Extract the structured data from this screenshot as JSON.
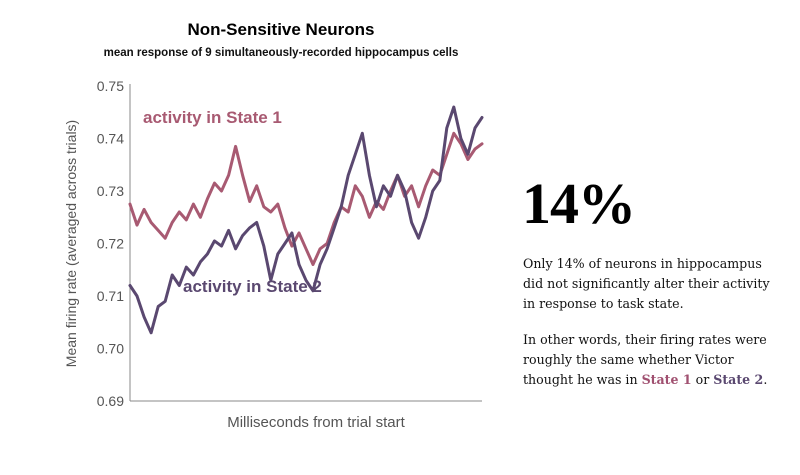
{
  "chart_data": {
    "type": "line",
    "title": "Non-Sensitive Neurons",
    "subtitle": "mean response of 9 simultaneously-recorded hippocampus cells",
    "xlabel": "Milliseconds from trial start",
    "ylabel": "Mean firing rate (averaged across trials)",
    "ylim": [
      0.69,
      0.75
    ],
    "yticks": [
      "0.75",
      "0.74",
      "0.73",
      "0.72",
      "0.71",
      "0.70",
      "0.69"
    ],
    "xlim": [
      0,
      100
    ],
    "grid": false,
    "series": [
      {
        "name": "activity in State 1",
        "color": "#a85a72",
        "x": [
          0,
          2,
          4,
          6,
          8,
          10,
          12,
          14,
          16,
          18,
          20,
          22,
          24,
          26,
          28,
          30,
          32,
          34,
          36,
          38,
          40,
          42,
          44,
          46,
          48,
          50,
          52,
          54,
          56,
          58,
          60,
          62,
          64,
          66,
          68,
          70,
          72,
          74,
          76,
          78,
          80,
          82,
          84,
          86,
          88,
          90,
          92,
          94,
          96,
          98,
          100
        ],
        "values": [
          0.7275,
          0.7235,
          0.7265,
          0.724,
          0.7225,
          0.721,
          0.724,
          0.726,
          0.7245,
          0.7275,
          0.725,
          0.7285,
          0.7315,
          0.73,
          0.733,
          0.7385,
          0.733,
          0.728,
          0.731,
          0.727,
          0.726,
          0.7275,
          0.723,
          0.7195,
          0.722,
          0.719,
          0.716,
          0.719,
          0.72,
          0.724,
          0.727,
          0.726,
          0.731,
          0.729,
          0.725,
          0.728,
          0.7265,
          0.73,
          0.733,
          0.729,
          0.731,
          0.727,
          0.731,
          0.734,
          0.733,
          0.737,
          0.741,
          0.739,
          0.736,
          0.738,
          0.739
        ]
      },
      {
        "name": "activity in State 2",
        "color": "#5a4870",
        "x": [
          0,
          2,
          4,
          6,
          8,
          10,
          12,
          14,
          16,
          18,
          20,
          22,
          24,
          26,
          28,
          30,
          32,
          34,
          36,
          38,
          40,
          42,
          44,
          46,
          48,
          50,
          52,
          54,
          56,
          58,
          60,
          62,
          64,
          66,
          68,
          70,
          72,
          74,
          76,
          78,
          80,
          82,
          84,
          86,
          88,
          90,
          92,
          94,
          96,
          98,
          100
        ],
        "values": [
          0.712,
          0.71,
          0.706,
          0.703,
          0.708,
          0.709,
          0.714,
          0.712,
          0.7155,
          0.714,
          0.7165,
          0.718,
          0.7205,
          0.7195,
          0.7225,
          0.719,
          0.7215,
          0.723,
          0.724,
          0.7195,
          0.713,
          0.718,
          0.72,
          0.722,
          0.716,
          0.713,
          0.711,
          0.716,
          0.719,
          0.723,
          0.727,
          0.733,
          0.737,
          0.741,
          0.733,
          0.727,
          0.731,
          0.729,
          0.733,
          0.73,
          0.724,
          0.721,
          0.725,
          0.73,
          0.732,
          0.742,
          0.746,
          0.74,
          0.737,
          0.742,
          0.744
        ]
      }
    ],
    "annotations": [
      {
        "text": "activity in State 1",
        "series": 0
      },
      {
        "text": "activity in State 2",
        "series": 1
      }
    ]
  },
  "side": {
    "big_number": "14%",
    "paragraph1": "Only 14% of neurons in hippocampus did not significantly alter their activity in response to task state.",
    "paragraph2_before": "In other words, their firing rates were roughly the same whether Victor thought he was in ",
    "state1": "State 1",
    "paragraph2_mid": " or ",
    "state2": "State 2",
    "paragraph2_end": "."
  },
  "colors": {
    "state1": "#a05070",
    "state2": "#5a4870",
    "axis": "#888888",
    "text": "#555555"
  }
}
